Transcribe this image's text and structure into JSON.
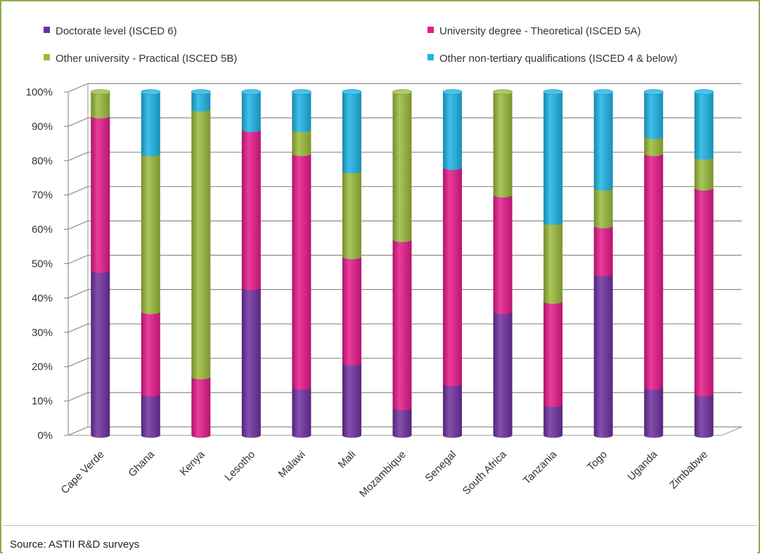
{
  "source": "Source: ASTII R&D surveys",
  "chart_data": {
    "type": "bar",
    "stacked": true,
    "percent": true,
    "three_d": true,
    "title": "",
    "xlabel": "",
    "ylabel": "",
    "ylim": [
      0,
      100
    ],
    "y_ticks": [
      "0%",
      "10%",
      "20%",
      "30%",
      "40%",
      "50%",
      "60%",
      "70%",
      "80%",
      "90%",
      "100%"
    ],
    "grid": true,
    "legend_position": "top",
    "categories": [
      "Cape Verde",
      "Ghana",
      "Kenya",
      "Lesotho",
      "Malawi",
      "Mali",
      "Mozambique",
      "Senegal",
      "South Africa",
      "Tanzania",
      "Togo",
      "Uganda",
      "Zimbabwe"
    ],
    "series": [
      {
        "name": "Doctorate level (ISCED 6)",
        "color": "#7030a0",
        "values": [
          48,
          12,
          0,
          43,
          14,
          21,
          8,
          15,
          36,
          9,
          47,
          14,
          12
        ]
      },
      {
        "name": "University degree - Theoretical (ISCED 5A)",
        "color": "#e6198c",
        "values": [
          45,
          24,
          17,
          46,
          68,
          31,
          49,
          63,
          34,
          30,
          14,
          68,
          60
        ]
      },
      {
        "name": "Other university - Practical (ISCED 5B)",
        "color": "#9bbb3b",
        "values": [
          7,
          46,
          78,
          0,
          7,
          25,
          43,
          0,
          30,
          23,
          11,
          5,
          9
        ]
      },
      {
        "name": "Other non-tertiary qualifications (ISCED 4 & below)",
        "color": "#1eb4e6",
        "values": [
          0,
          18,
          5,
          11,
          11,
          23,
          0,
          22,
          0,
          38,
          28,
          13,
          19
        ]
      }
    ]
  }
}
